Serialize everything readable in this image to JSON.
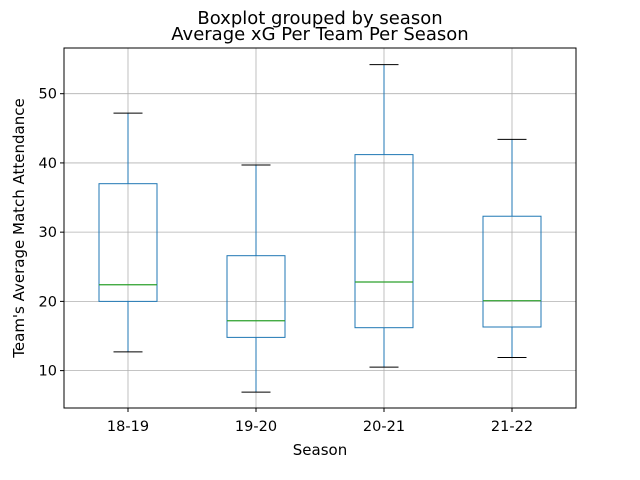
{
  "chart_data": {
    "type": "boxplot",
    "suptitle": "Boxplot grouped by season",
    "title": "Average xG Per Team Per Season",
    "xlabel": "Season",
    "ylabel": "Team's Average Match Attendance",
    "ylim": [
      4.6,
      56.6
    ],
    "yticks": [
      10,
      20,
      30,
      40,
      50
    ],
    "grid": true,
    "box_color": "#1f77b4",
    "median_color": "#2ca02c",
    "whisker_color": "#1f77b4",
    "cap_color": "#000000",
    "grid_color": "#b0b0b0",
    "categories": [
      "18-19",
      "19-20",
      "20-21",
      "21-22"
    ],
    "boxes": [
      {
        "label": "18-19",
        "whisker_low": 12.7,
        "q1": 20.0,
        "median": 22.4,
        "q3": 37.0,
        "whisker_high": 47.2
      },
      {
        "label": "19-20",
        "whisker_low": 6.9,
        "q1": 14.8,
        "median": 17.2,
        "q3": 26.6,
        "whisker_high": 39.7
      },
      {
        "label": "20-21",
        "whisker_low": 10.5,
        "q1": 16.2,
        "median": 22.8,
        "q3": 41.2,
        "whisker_high": 54.2
      },
      {
        "label": "21-22",
        "whisker_low": 11.9,
        "q1": 16.3,
        "median": 20.1,
        "q3": 32.3,
        "whisker_high": 43.4
      }
    ]
  }
}
